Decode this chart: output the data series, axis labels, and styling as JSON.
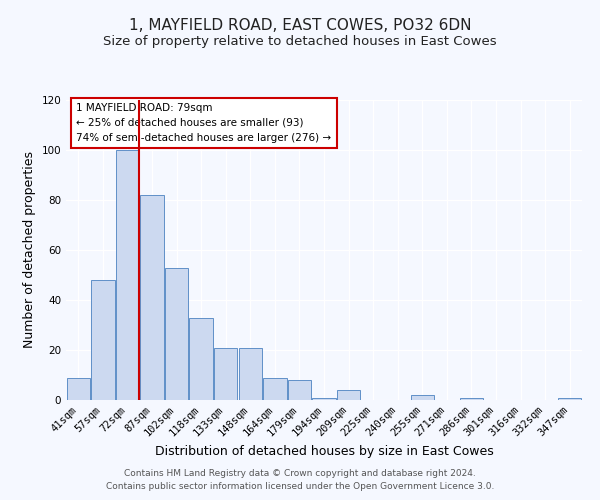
{
  "title": "1, MAYFIELD ROAD, EAST COWES, PO32 6DN",
  "subtitle": "Size of property relative to detached houses in East Cowes",
  "xlabel": "Distribution of detached houses by size in East Cowes",
  "ylabel": "Number of detached properties",
  "bar_labels": [
    "41sqm",
    "57sqm",
    "72sqm",
    "87sqm",
    "102sqm",
    "118sqm",
    "133sqm",
    "148sqm",
    "164sqm",
    "179sqm",
    "194sqm",
    "209sqm",
    "225sqm",
    "240sqm",
    "255sqm",
    "271sqm",
    "286sqm",
    "301sqm",
    "316sqm",
    "332sqm",
    "347sqm"
  ],
  "bar_values": [
    9,
    48,
    100,
    82,
    53,
    33,
    21,
    21,
    9,
    8,
    1,
    4,
    0,
    0,
    2,
    0,
    1,
    0,
    0,
    0,
    1
  ],
  "bar_color": "#ccd9f0",
  "bar_edge_color": "#6090c8",
  "vline_x": 2.47,
  "vline_color": "#cc0000",
  "ylim": [
    0,
    120
  ],
  "yticks": [
    0,
    20,
    40,
    60,
    80,
    100,
    120
  ],
  "annotation_box_text": "1 MAYFIELD ROAD: 79sqm\n← 25% of detached houses are smaller (93)\n74% of semi-detached houses are larger (276) →",
  "footer_line1": "Contains HM Land Registry data © Crown copyright and database right 2024.",
  "footer_line2": "Contains public sector information licensed under the Open Government Licence 3.0.",
  "background_color": "#f5f8ff",
  "plot_bg_color": "#f5f8ff",
  "title_fontsize": 11,
  "subtitle_fontsize": 9.5,
  "xlabel_fontsize": 9,
  "ylabel_fontsize": 9,
  "tick_fontsize": 7.5,
  "footer_fontsize": 6.5
}
